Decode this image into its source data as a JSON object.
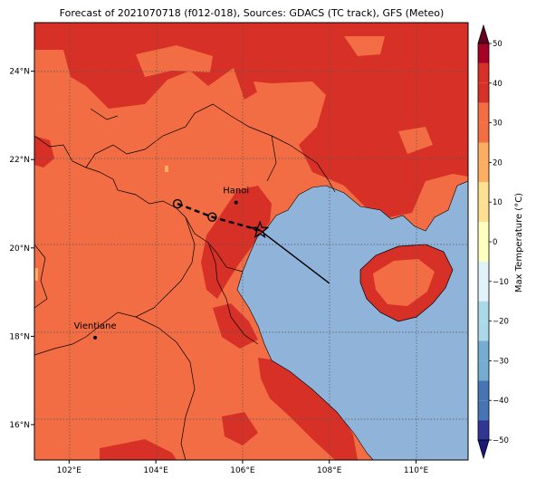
{
  "map": {
    "title": "Forecast of 2021070718 (f012-018), Sources: GDACS (TC track), GFS (Meteo)",
    "lon_labels": [
      "102°E",
      "104°E",
      "106°E",
      "108°E",
      "110°E"
    ],
    "lon_values": [
      102,
      104,
      106,
      108,
      110
    ],
    "lat_labels": [
      "24°N",
      "22°N",
      "20°N",
      "18°N",
      "16°N"
    ],
    "lat_values": [
      24,
      22,
      20,
      18,
      16
    ],
    "extent": {
      "lon_min": 101.2,
      "lon_max": 111.2,
      "lat_min": 15.2,
      "lat_max": 25.1
    },
    "cities": [
      {
        "name": "Hanoi",
        "lon": 105.85,
        "lat": 21.03
      },
      {
        "name": "Vientiane",
        "lon": 102.6,
        "lat": 17.97
      }
    ],
    "track": {
      "past": [
        [
          104.5,
          21.0
        ],
        [
          105.3,
          20.7
        ],
        [
          106.4,
          20.4
        ]
      ],
      "current": [
        106.4,
        20.4
      ],
      "forecast_end": [
        108.0,
        19.2
      ]
    },
    "colors": {
      "sea": "#8fb3d9",
      "land_20_30": "#f26d43",
      "land_30_40": "#d73027",
      "land_10_20": "#fdae61",
      "border": "#000000"
    }
  },
  "colorbar": {
    "label": "Max Temperature (°C)",
    "ticks": [
      50,
      40,
      30,
      20,
      10,
      0,
      -10,
      -20,
      -30,
      -40,
      -50
    ],
    "colors": [
      "#67001f",
      "#a50026",
      "#d73027",
      "#f46d43",
      "#fdae61",
      "#fee090",
      "#ffffbf",
      "#e0f3f8",
      "#abd9e9",
      "#74add1",
      "#4575b4",
      "#313695",
      "#1a1a7a"
    ]
  }
}
